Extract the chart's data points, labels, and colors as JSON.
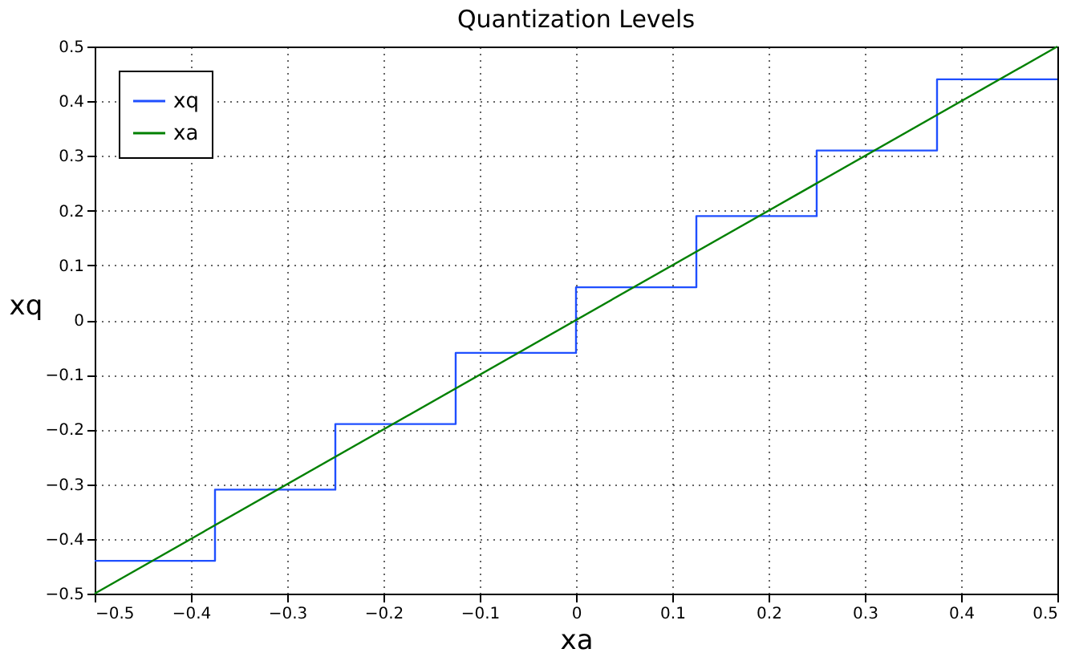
{
  "chart_data": {
    "type": "line",
    "title": "Quantization Levels",
    "xlabel": "xa",
    "ylabel": "xq",
    "xlim": [
      -0.5,
      0.5
    ],
    "ylim": [
      -0.5,
      0.5
    ],
    "xticks": [
      -0.5,
      -0.4,
      -0.3,
      -0.2,
      -0.1,
      0,
      0.1,
      0.2,
      0.3,
      0.4,
      0.5
    ],
    "yticks": [
      -0.5,
      -0.4,
      -0.3,
      -0.2,
      -0.1,
      0,
      0.1,
      0.2,
      0.3,
      0.4,
      0.5
    ],
    "grid": true,
    "legend": "top left",
    "series": [
      {
        "name": "xq",
        "type": "step",
        "color": "#1f4fff",
        "x": [
          -0.5,
          -0.375,
          -0.25,
          -0.125,
          0,
          0.125,
          0.25,
          0.375,
          0.5
        ],
        "values": [
          -0.44,
          -0.31,
          -0.19,
          -0.06,
          0.06,
          0.19,
          0.31,
          0.44,
          0.44
        ]
      },
      {
        "name": "xa",
        "color": "#008000",
        "x": [
          -0.5,
          0.5
        ],
        "values": [
          -0.5,
          0.5
        ]
      }
    ]
  }
}
